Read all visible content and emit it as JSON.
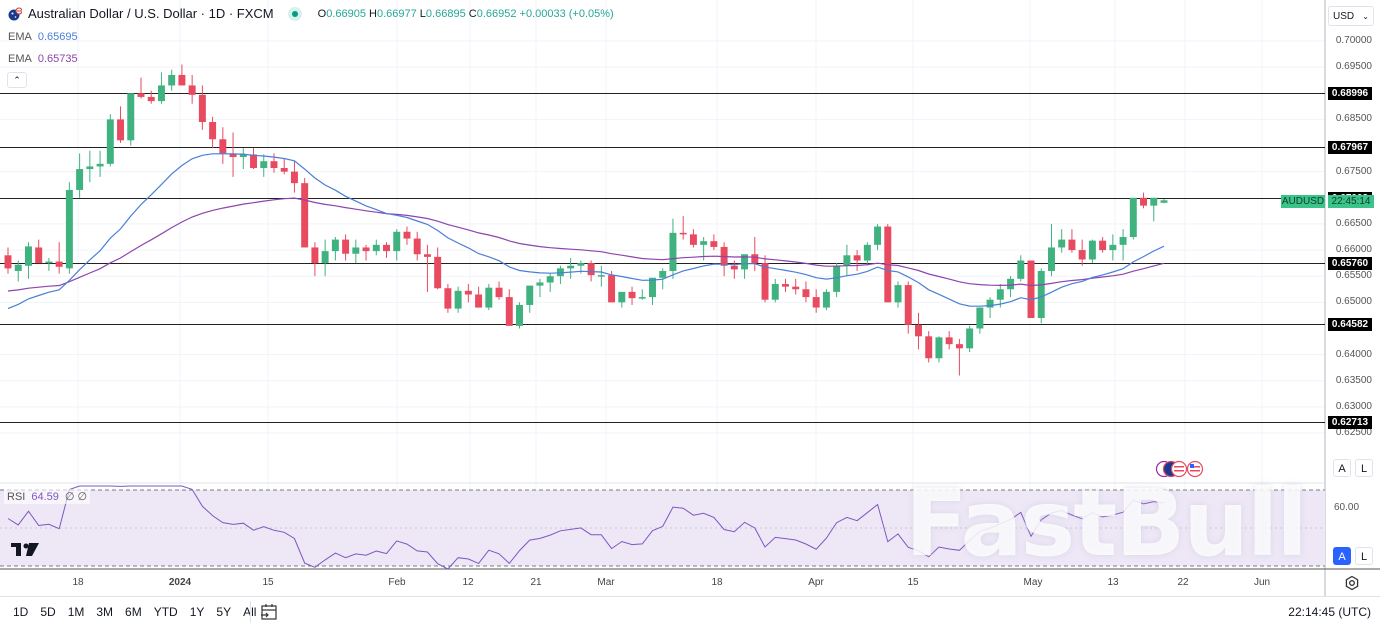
{
  "header": {
    "symbol_title": "Australian Dollar / U.S. Dollar · 1D · FXCM",
    "status_color": "#089981",
    "ohlc": {
      "open_label": "O",
      "open": "0.66905",
      "high_label": "H",
      "high": "0.66977",
      "low_label": "L",
      "low": "0.66895",
      "close_label": "C",
      "close": "0.66952",
      "change": "+0.00033 (+0.05%)"
    },
    "indicators": [
      {
        "name": "EMA",
        "value": "0.65695",
        "color": "#4a7fd8"
      },
      {
        "name": "EMA",
        "value": "0.65735",
        "color": "#8e44ad"
      }
    ],
    "collapse_icon": "chevron-up"
  },
  "price_axis": {
    "currency": "USD",
    "ticks": [
      "0.70000",
      "0.69500",
      "0.68500",
      "0.67500",
      "0.66500",
      "0.66000",
      "0.65500",
      "0.65000",
      "0.64000",
      "0.63500",
      "0.63000",
      "0.62500"
    ],
    "horizontal_levels": [
      "0.68996",
      "0.67967",
      "0.67003",
      "0.65760",
      "0.64582",
      "0.62713"
    ],
    "symbol_tag": "AUDUSD",
    "countdown": "22:45:14",
    "scale_buttons": {
      "auto": "A",
      "log": "L"
    }
  },
  "rsi": {
    "label": "RSI",
    "value": "64.59",
    "extra": "∅ ∅",
    "axis_tick": "60.00",
    "scale_buttons": {
      "auto": "A",
      "log": "L"
    }
  },
  "time_axis": {
    "labels": [
      "18",
      "2024",
      "15",
      "Feb",
      "12",
      "21",
      "Mar",
      "18",
      "Apr",
      "15",
      "May",
      "13",
      "22",
      "Jun"
    ]
  },
  "bottom_bar": {
    "ranges": [
      "1D",
      "5D",
      "1M",
      "3M",
      "6M",
      "YTD",
      "1Y",
      "5Y",
      "All"
    ],
    "date_range_icon": "calendar-goto",
    "clock": "22:14:45 (UTC)"
  },
  "watermark": "FastBull",
  "colors": {
    "up": "#3fb27f",
    "down": "#e84a5f",
    "ema_fast": "#4a7fd8",
    "ema_slow": "#8e44ad",
    "rsi": "#7e57c2",
    "rsi_band": "#ede7f6"
  },
  "chart_data": {
    "type": "candlestick",
    "title": "Australian Dollar / U.S. Dollar · 1D · FXCM",
    "xlabel": "",
    "ylabel": "USD",
    "ylim": [
      0.624,
      0.702
    ],
    "x_ticks": [
      "18",
      "2024",
      "15",
      "Feb",
      "12",
      "21",
      "Mar",
      "18",
      "Apr",
      "15",
      "May",
      "13",
      "22",
      "Jun"
    ],
    "horizontal_levels": [
      0.68996,
      0.67967,
      0.67003,
      0.6576,
      0.64582,
      0.62713
    ],
    "last": {
      "open": 0.66905,
      "high": 0.66977,
      "low": 0.66895,
      "close": 0.66952,
      "change": 0.00033,
      "change_pct": 0.05
    },
    "ema": [
      {
        "name": "EMA fast",
        "value": 0.65695
      },
      {
        "name": "EMA slow",
        "value": 0.65735
      }
    ],
    "rsi": {
      "value": 64.59,
      "level_shown": 60.0
    },
    "candles_ohlc": [
      [
        0.659,
        0.6605,
        0.6555,
        0.6565
      ],
      [
        0.656,
        0.658,
        0.654,
        0.6572
      ],
      [
        0.657,
        0.6615,
        0.6545,
        0.6607
      ],
      [
        0.6605,
        0.662,
        0.6575,
        0.6575
      ],
      [
        0.6575,
        0.6585,
        0.656,
        0.6578
      ],
      [
        0.6578,
        0.6615,
        0.6555,
        0.6568
      ],
      [
        0.6565,
        0.673,
        0.6555,
        0.6715
      ],
      [
        0.6715,
        0.6785,
        0.67,
        0.6755
      ],
      [
        0.6755,
        0.679,
        0.673,
        0.676
      ],
      [
        0.676,
        0.679,
        0.674,
        0.6765
      ],
      [
        0.6765,
        0.686,
        0.676,
        0.685
      ],
      [
        0.685,
        0.6875,
        0.6805,
        0.681
      ],
      [
        0.681,
        0.69,
        0.68,
        0.69
      ],
      [
        0.69,
        0.693,
        0.689,
        0.6893
      ],
      [
        0.6893,
        0.6905,
        0.688,
        0.6885
      ],
      [
        0.6885,
        0.694,
        0.688,
        0.6915
      ],
      [
        0.6915,
        0.6945,
        0.6905,
        0.6935
      ],
      [
        0.6935,
        0.6955,
        0.6915,
        0.6915
      ],
      [
        0.6915,
        0.6935,
        0.688,
        0.6897
      ],
      [
        0.6897,
        0.6915,
        0.683,
        0.6845
      ],
      [
        0.6845,
        0.6855,
        0.6795,
        0.6812
      ],
      [
        0.6812,
        0.6835,
        0.6765,
        0.6785
      ],
      [
        0.6785,
        0.6825,
        0.674,
        0.6778
      ],
      [
        0.6778,
        0.6795,
        0.6755,
        0.6783
      ],
      [
        0.6783,
        0.6795,
        0.6755,
        0.6757
      ],
      [
        0.6757,
        0.6783,
        0.674,
        0.677
      ],
      [
        0.677,
        0.6785,
        0.6748,
        0.6757
      ],
      [
        0.6757,
        0.6775,
        0.6745,
        0.675
      ],
      [
        0.675,
        0.677,
        0.671,
        0.6728
      ],
      [
        0.6728,
        0.6738,
        0.6605,
        0.6605
      ],
      [
        0.6605,
        0.6615,
        0.655,
        0.6575
      ],
      [
        0.6575,
        0.662,
        0.655,
        0.6598
      ],
      [
        0.6598,
        0.6625,
        0.658,
        0.662
      ],
      [
        0.662,
        0.663,
        0.658,
        0.6593
      ],
      [
        0.6593,
        0.662,
        0.6575,
        0.6605
      ],
      [
        0.6605,
        0.661,
        0.658,
        0.6598
      ],
      [
        0.6598,
        0.662,
        0.659,
        0.661
      ],
      [
        0.661,
        0.6615,
        0.6585,
        0.6598
      ],
      [
        0.6598,
        0.664,
        0.658,
        0.6635
      ],
      [
        0.6635,
        0.6645,
        0.661,
        0.6622
      ],
      [
        0.6622,
        0.6635,
        0.658,
        0.6592
      ],
      [
        0.6592,
        0.661,
        0.652,
        0.6587
      ],
      [
        0.6587,
        0.6605,
        0.6525,
        0.6527
      ],
      [
        0.6527,
        0.6535,
        0.648,
        0.6488
      ],
      [
        0.6488,
        0.653,
        0.648,
        0.6522
      ],
      [
        0.6522,
        0.6535,
        0.65,
        0.6515
      ],
      [
        0.6515,
        0.653,
        0.649,
        0.649
      ],
      [
        0.649,
        0.6535,
        0.6485,
        0.6528
      ],
      [
        0.6528,
        0.654,
        0.6505,
        0.651
      ],
      [
        0.651,
        0.6525,
        0.6455,
        0.6455
      ],
      [
        0.6455,
        0.65,
        0.645,
        0.6495
      ],
      [
        0.6495,
        0.653,
        0.648,
        0.6532
      ],
      [
        0.6532,
        0.6545,
        0.651,
        0.6538
      ],
      [
        0.6538,
        0.6555,
        0.652,
        0.655
      ],
      [
        0.655,
        0.657,
        0.6535,
        0.6565
      ],
      [
        0.6565,
        0.6585,
        0.6545,
        0.657
      ],
      [
        0.657,
        0.658,
        0.6555,
        0.6575
      ],
      [
        0.6575,
        0.658,
        0.654,
        0.6552
      ],
      [
        0.6552,
        0.657,
        0.653,
        0.6552
      ],
      [
        0.6552,
        0.656,
        0.65,
        0.65
      ],
      [
        0.65,
        0.652,
        0.649,
        0.652
      ],
      [
        0.652,
        0.653,
        0.6495,
        0.6508
      ],
      [
        0.6508,
        0.6525,
        0.6505,
        0.651
      ],
      [
        0.651,
        0.6545,
        0.6495,
        0.6547
      ],
      [
        0.6547,
        0.6565,
        0.6525,
        0.656
      ],
      [
        0.656,
        0.666,
        0.6545,
        0.6633
      ],
      [
        0.6633,
        0.6665,
        0.662,
        0.663
      ],
      [
        0.663,
        0.664,
        0.6605,
        0.661
      ],
      [
        0.661,
        0.6625,
        0.658,
        0.6617
      ],
      [
        0.6617,
        0.663,
        0.66,
        0.6606
      ],
      [
        0.6606,
        0.6615,
        0.655,
        0.657
      ],
      [
        0.657,
        0.658,
        0.6545,
        0.6563
      ],
      [
        0.6563,
        0.6585,
        0.6545,
        0.6592
      ],
      [
        0.6592,
        0.6625,
        0.656,
        0.6575
      ],
      [
        0.6575,
        0.659,
        0.65,
        0.6505
      ],
      [
        0.6505,
        0.6545,
        0.65,
        0.6535
      ],
      [
        0.6535,
        0.6545,
        0.652,
        0.653
      ],
      [
        0.653,
        0.6545,
        0.6515,
        0.6525
      ],
      [
        0.6525,
        0.654,
        0.65,
        0.651
      ],
      [
        0.651,
        0.6525,
        0.648,
        0.649
      ],
      [
        0.649,
        0.6525,
        0.6485,
        0.652
      ],
      [
        0.652,
        0.6575,
        0.651,
        0.657
      ],
      [
        0.657,
        0.661,
        0.655,
        0.659
      ],
      [
        0.659,
        0.66,
        0.656,
        0.658
      ],
      [
        0.658,
        0.6615,
        0.657,
        0.661
      ],
      [
        0.661,
        0.665,
        0.66,
        0.6645
      ],
      [
        0.6645,
        0.665,
        0.65,
        0.65
      ],
      [
        0.65,
        0.654,
        0.649,
        0.6533
      ],
      [
        0.6533,
        0.654,
        0.644,
        0.6457
      ],
      [
        0.6457,
        0.648,
        0.641,
        0.6435
      ],
      [
        0.6435,
        0.6445,
        0.6385,
        0.6393
      ],
      [
        0.6393,
        0.6435,
        0.6385,
        0.6433
      ],
      [
        0.6433,
        0.6445,
        0.641,
        0.642
      ],
      [
        0.642,
        0.643,
        0.636,
        0.6412
      ],
      [
        0.6412,
        0.6455,
        0.6405,
        0.645
      ],
      [
        0.645,
        0.649,
        0.644,
        0.649
      ],
      [
        0.649,
        0.651,
        0.647,
        0.6505
      ],
      [
        0.6505,
        0.6535,
        0.649,
        0.6525
      ],
      [
        0.6525,
        0.655,
        0.651,
        0.6545
      ],
      [
        0.6545,
        0.659,
        0.654,
        0.658
      ],
      [
        0.658,
        0.658,
        0.647,
        0.647
      ],
      [
        0.647,
        0.6565,
        0.646,
        0.656
      ],
      [
        0.656,
        0.665,
        0.655,
        0.6605
      ],
      [
        0.6605,
        0.664,
        0.6595,
        0.662
      ],
      [
        0.662,
        0.664,
        0.6595,
        0.66
      ],
      [
        0.66,
        0.662,
        0.657,
        0.6582
      ],
      [
        0.6582,
        0.662,
        0.6575,
        0.6618
      ],
      [
        0.6618,
        0.6625,
        0.6595,
        0.66
      ],
      [
        0.66,
        0.663,
        0.658,
        0.661
      ],
      [
        0.661,
        0.664,
        0.658,
        0.6625
      ],
      [
        0.6625,
        0.67,
        0.662,
        0.67
      ],
      [
        0.67,
        0.671,
        0.668,
        0.6685
      ],
      [
        0.6685,
        0.67,
        0.6655,
        0.67
      ],
      [
        0.66905,
        0.66977,
        0.66895,
        0.66952
      ]
    ]
  }
}
